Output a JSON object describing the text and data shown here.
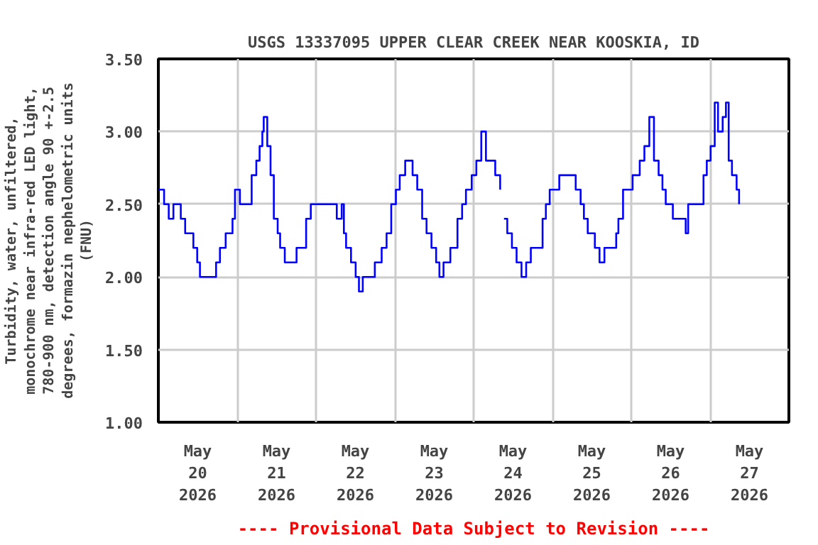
{
  "chart_data": {
    "type": "step",
    "title": "USGS 13337095 UPPER CLEAR CREEK NEAR KOOSKIA, ID",
    "ylabel": "Turbidity, water, unfiltered,\nmonochrome near infra-red LED light,\n780-900 nm, detection angle 90 +-2.5\ndegrees, formazin nephelometric units\n(FNU)",
    "annotations": [
      "---- Provisional Data Subject to Revision ----"
    ],
    "x": [
      "2026-05-20T00:00",
      "2026-05-20T01:45",
      "2026-05-20T03:10",
      "2026-05-20T04:35",
      "2026-05-20T06:50",
      "2026-05-20T08:10",
      "2026-05-20T10:40",
      "2026-05-20T11:50",
      "2026-05-20T12:40",
      "2026-05-20T16:50",
      "2026-05-20T17:35",
      "2026-05-20T18:45",
      "2026-05-20T20:30",
      "2026-05-20T22:35",
      "2026-05-20T23:20",
      "2026-05-21T00:50",
      "2026-05-21T02:55",
      "2026-05-21T04:25",
      "2026-05-21T05:50",
      "2026-05-21T06:50",
      "2026-05-21T07:40",
      "2026-05-21T08:05",
      "2026-05-21T09:10",
      "2026-05-21T10:10",
      "2026-05-21T11:10",
      "2026-05-21T12:20",
      "2026-05-21T13:05",
      "2026-05-21T14:30",
      "2026-05-21T16:40",
      "2026-05-21T18:05",
      "2026-05-21T21:00",
      "2026-05-21T22:25",
      "2026-05-22T05:35",
      "2026-05-22T06:20",
      "2026-05-22T07:50",
      "2026-05-22T08:30",
      "2026-05-22T09:10",
      "2026-05-22T10:40",
      "2026-05-22T12:05",
      "2026-05-22T13:05",
      "2026-05-22T14:15",
      "2026-05-22T17:55",
      "2026-05-22T20:00",
      "2026-05-22T21:30",
      "2026-05-22T22:55",
      "2026-05-23T00:20",
      "2026-05-23T01:30",
      "2026-05-23T03:10",
      "2026-05-23T05:25",
      "2026-05-23T06:50",
      "2026-05-23T08:20",
      "2026-05-23T09:40",
      "2026-05-23T11:10",
      "2026-05-23T12:35",
      "2026-05-23T13:35",
      "2026-05-23T14:50",
      "2026-05-23T16:55",
      "2026-05-23T19:05",
      "2026-05-23T20:30",
      "2026-05-23T21:40",
      "2026-05-23T23:25",
      "2026-05-24T00:50",
      "2026-05-24T02:20",
      "2026-05-24T03:45",
      "2026-05-24T06:35",
      "2026-05-24T08:05",
      "2026-05-24T08:40",
      "2026-05-24T09:15",
      "2026-05-24T10:15",
      "2026-05-24T11:40",
      "2026-05-24T13:05",
      "2026-05-24T14:35",
      "2026-05-24T16:00",
      "2026-05-24T17:25",
      "2026-05-24T19:35",
      "2026-05-24T21:00",
      "2026-05-24T22:00",
      "2026-05-24T23:10",
      "2026-05-25T02:05",
      "2026-05-25T05:00",
      "2026-05-25T07:05",
      "2026-05-25T08:35",
      "2026-05-25T09:35",
      "2026-05-25T10:45",
      "2026-05-25T12:55",
      "2026-05-25T14:20",
      "2026-05-25T15:50",
      "2026-05-25T19:25",
      "2026-05-25T20:05",
      "2026-05-25T21:30",
      "2026-05-26T00:25",
      "2026-05-26T02:35",
      "2026-05-26T04:00",
      "2026-05-26T05:30",
      "2026-05-26T06:55",
      "2026-05-26T08:20",
      "2026-05-26T09:30",
      "2026-05-26T10:30",
      "2026-05-26T12:40",
      "2026-05-26T16:35",
      "2026-05-26T17:20",
      "2026-05-26T21:20",
      "2026-05-26T22:00",
      "2026-05-26T23:00",
      "2026-05-27T00:10",
      "2026-05-27T01:25",
      "2026-05-27T02:25",
      "2026-05-27T03:50",
      "2026-05-27T04:50",
      "2026-05-27T05:40",
      "2026-05-27T06:40",
      "2026-05-27T08:05",
      "2026-05-27T08:50"
    ],
    "series": [
      {
        "color": "#0000ff",
        "values": [
          2.6,
          2.5,
          2.4,
          2.5,
          2.4,
          2.3,
          2.2,
          2.1,
          2.0,
          2.0,
          2.1,
          2.2,
          2.3,
          2.4,
          2.6,
          2.5,
          2.5,
          2.7,
          2.8,
          2.9,
          3.0,
          3.1,
          2.9,
          2.7,
          2.4,
          2.3,
          2.2,
          2.1,
          2.1,
          2.2,
          2.4,
          2.5,
          2.5,
          2.4,
          2.5,
          2.3,
          2.2,
          2.1,
          2.0,
          1.9,
          2.0,
          2.1,
          2.2,
          2.3,
          2.5,
          2.6,
          2.7,
          2.8,
          2.7,
          2.6,
          2.4,
          2.3,
          2.2,
          2.1,
          2.0,
          2.1,
          2.2,
          2.4,
          2.5,
          2.6,
          2.7,
          2.8,
          3.0,
          2.8,
          2.7,
          2.6,
          null,
          2.4,
          2.3,
          2.2,
          2.1,
          2.0,
          2.1,
          2.2,
          2.2,
          2.4,
          2.5,
          2.6,
          2.7,
          2.7,
          2.6,
          2.5,
          2.4,
          2.3,
          2.2,
          2.1,
          2.2,
          2.3,
          2.4,
          2.6,
          2.7,
          2.8,
          2.9,
          3.1,
          2.8,
          2.7,
          2.6,
          2.5,
          2.4,
          2.3,
          2.5,
          2.5,
          2.7,
          2.8,
          2.9,
          3.2,
          3.0,
          3.1,
          3.2,
          2.8,
          2.7,
          2.6,
          2.5
        ]
      }
    ],
    "xlim": [
      "2026-05-20T00:00",
      "2026-05-28T00:00"
    ],
    "xticks": [
      {
        "value": "2026-05-20T00:00",
        "label": null
      },
      {
        "value": "2026-05-20T12:00",
        "label": "May\n20\n2026"
      },
      {
        "value": "2026-05-21T00:00",
        "label": null
      },
      {
        "value": "2026-05-21T12:00",
        "label": "May\n21\n2026"
      },
      {
        "value": "2026-05-22T00:00",
        "label": null
      },
      {
        "value": "2026-05-22T12:00",
        "label": "May\n22\n2026"
      },
      {
        "value": "2026-05-23T00:00",
        "label": null
      },
      {
        "value": "2026-05-23T12:00",
        "label": "May\n23\n2026"
      },
      {
        "value": "2026-05-24T00:00",
        "label": null
      },
      {
        "value": "2026-05-24T12:00",
        "label": "May\n24\n2026"
      },
      {
        "value": "2026-05-25T00:00",
        "label": null
      },
      {
        "value": "2026-05-25T12:00",
        "label": "May\n25\n2026"
      },
      {
        "value": "2026-05-26T00:00",
        "label": null
      },
      {
        "value": "2026-05-26T12:00",
        "label": "May\n26\n2026"
      },
      {
        "value": "2026-05-27T00:00",
        "label": null
      },
      {
        "value": "2026-05-27T12:00",
        "label": "May\n27\n2026"
      },
      {
        "value": "2026-05-28T00:00",
        "label": null
      }
    ],
    "ylim": [
      1.0,
      3.5
    ],
    "yticks": [
      {
        "value": 1.0,
        "label": "1.00"
      },
      {
        "value": 1.5,
        "label": "1.50"
      },
      {
        "value": 2.0,
        "label": "2.00"
      },
      {
        "value": 2.5,
        "label": "2.50"
      },
      {
        "value": 3.0,
        "label": "3.00"
      },
      {
        "value": 3.5,
        "label": "3.50"
      }
    ],
    "grid": true
  }
}
